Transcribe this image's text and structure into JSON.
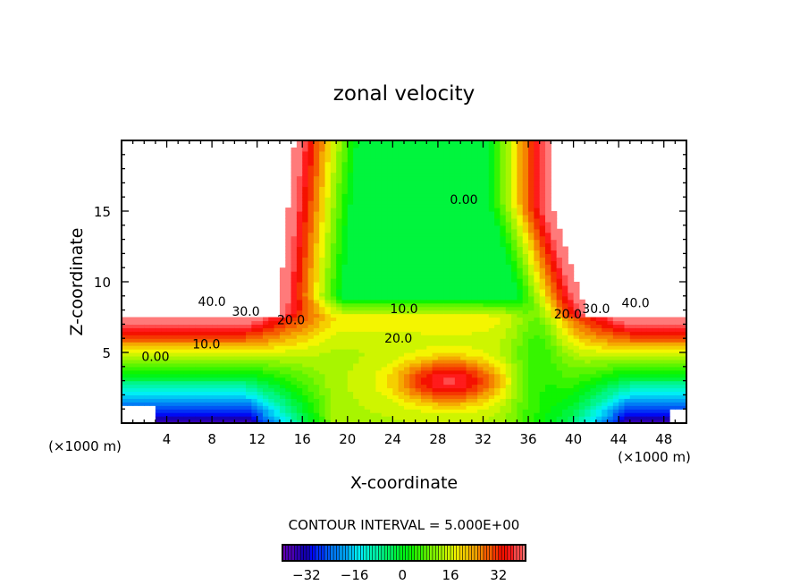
{
  "chart_data": {
    "type": "heatmap",
    "title": "zonal velocity",
    "xlabel": "X-coordinate",
    "ylabel": "Z-coordinate",
    "x_unit_left": "(×1000 m)",
    "x_unit_right": "(×1000 m)",
    "xlim": [
      0,
      50
    ],
    "ylim": [
      0,
      20
    ],
    "xticks": [
      4,
      8,
      12,
      16,
      20,
      24,
      28,
      32,
      36,
      40,
      44,
      48
    ],
    "yticks": [
      5,
      10,
      15
    ],
    "contour_interval_text": "CONTOUR INTERVAL = 5.000E+00",
    "colorbar": {
      "range": [
        -40,
        41
      ],
      "ticks": [
        -32,
        -16,
        0,
        16,
        32
      ]
    },
    "contour_labels": [
      {
        "text": "40.0",
        "x": 8,
        "z": 8.3
      },
      {
        "text": "30.0",
        "x": 11,
        "z": 7.6
      },
      {
        "text": "20.0",
        "x": 15,
        "z": 7.0
      },
      {
        "text": "10.0",
        "x": 7.5,
        "z": 5.3
      },
      {
        "text": "0.00",
        "x": 3,
        "z": 4.4
      },
      {
        "text": "10.0",
        "x": 25,
        "z": 7.8
      },
      {
        "text": "20.0",
        "x": 24.5,
        "z": 5.7
      },
      {
        "text": "0.00",
        "x": 30.3,
        "z": 15.5
      },
      {
        "text": "20.0",
        "x": 39.5,
        "z": 7.4
      },
      {
        "text": "30.0",
        "x": 42,
        "z": 7.8
      },
      {
        "text": "40.0",
        "x": 45.5,
        "z": 8.2
      }
    ]
  }
}
